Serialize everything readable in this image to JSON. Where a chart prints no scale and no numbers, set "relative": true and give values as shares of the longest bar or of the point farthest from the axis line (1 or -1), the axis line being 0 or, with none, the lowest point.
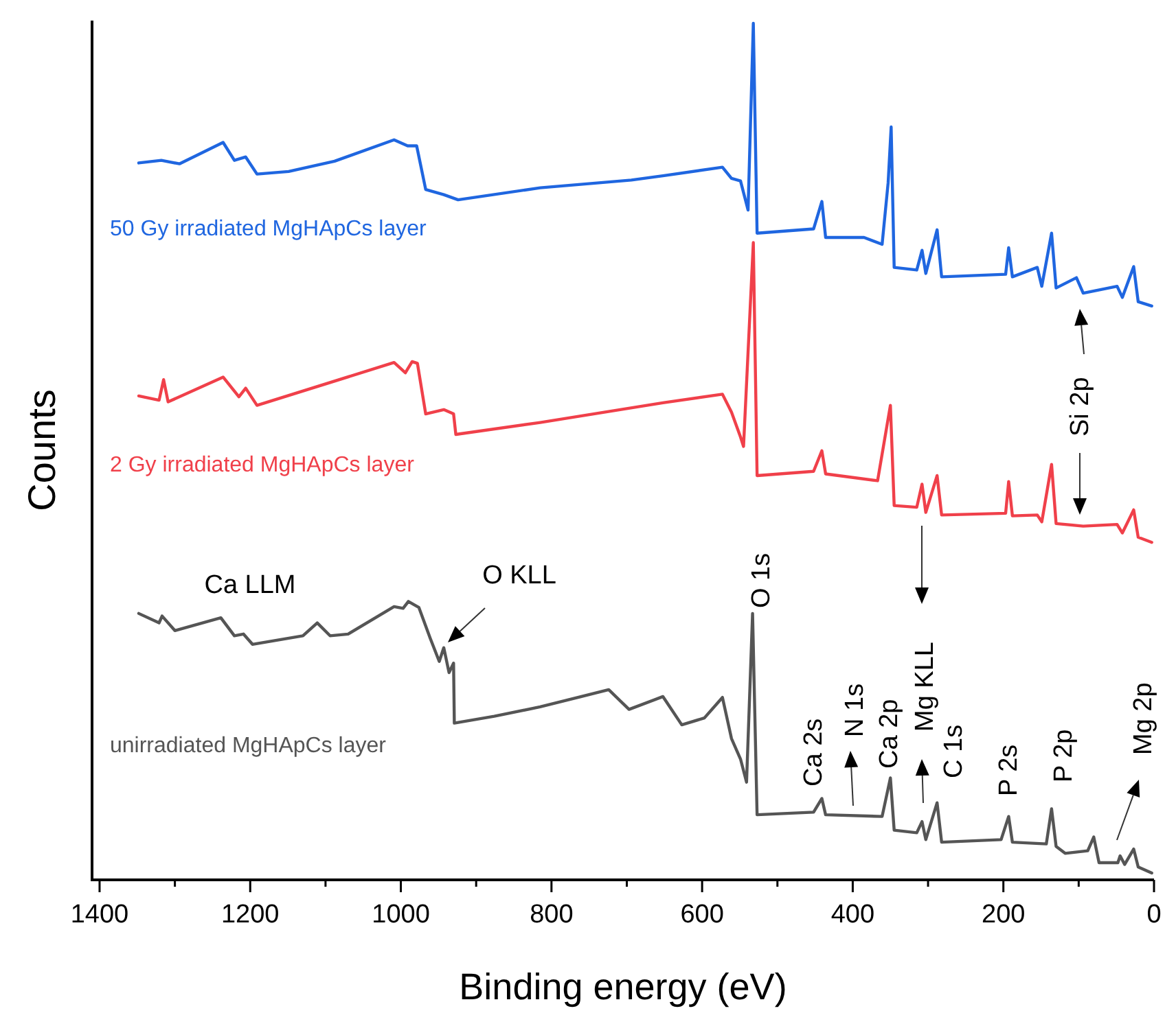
{
  "chart_data": {
    "type": "line",
    "xlabel": "Binding energy (eV)",
    "ylabel": "Counts",
    "relative": true,
    "legend": false,
    "tick_labels": "x",
    "grid": false,
    "xlim": [
      1410,
      0
    ],
    "xticks": [
      1400,
      {
        "value": 1300,
        "label": null
      },
      1200,
      {
        "value": 1100,
        "label": null
      },
      1000,
      {
        "value": 900,
        "label": null
      },
      800,
      {
        "value": 700,
        "label": null
      },
      600,
      {
        "value": 500,
        "label": null
      },
      400,
      {
        "value": 300,
        "label": null
      },
      200,
      {
        "value": 100,
        "label": null
      },
      0
    ],
    "series": [
      {
        "name": "50 Gy irradiated MgHApCs layer",
        "color": "#1f66e0",
        "x": [
          1348,
          1318,
          1294,
          1236,
          1221,
          1206,
          1191,
          1149,
          1088,
          1009,
          991,
          979,
          967,
          943,
          924,
          815,
          694,
          652,
          573,
          561,
          549,
          539,
          532,
          527,
          452,
          441,
          436,
          385,
          361,
          353,
          349,
          345,
          315,
          308,
          303,
          288,
          282,
          197,
          193,
          188,
          155,
          149,
          136,
          130,
          103,
          94,
          49,
          42,
          27,
          21,
          3
        ],
        "values": [
          0.837,
          0.84,
          0.836,
          0.861,
          0.84,
          0.844,
          0.824,
          0.827,
          0.839,
          0.864,
          0.857,
          0.857,
          0.806,
          0.8,
          0.794,
          0.808,
          0.817,
          0.822,
          0.832,
          0.819,
          0.816,
          0.782,
          1.0,
          0.755,
          0.76,
          0.792,
          0.75,
          0.75,
          0.742,
          0.814,
          0.879,
          0.715,
          0.712,
          0.735,
          0.708,
          0.759,
          0.704,
          0.707,
          0.738,
          0.704,
          0.715,
          0.693,
          0.755,
          0.691,
          0.703,
          0.685,
          0.693,
          0.68,
          0.716,
          0.675,
          0.67
        ]
      },
      {
        "name": "2 Gy irradiated MgHApCs layer",
        "color": "#f0404a",
        "x": [
          1348,
          1321,
          1315,
          1309,
          1236,
          1215,
          1206,
          1191,
          1009,
          994,
          985,
          978,
          967,
          943,
          930,
          927,
          815,
          652,
          573,
          561,
          549,
          545,
          532,
          527,
          452,
          441,
          436,
          367,
          350,
          345,
          315,
          308,
          303,
          288,
          282,
          197,
          193,
          188,
          155,
          149,
          136,
          130,
          94,
          49,
          42,
          27,
          21,
          3
        ],
        "values": [
          0.565,
          0.56,
          0.584,
          0.558,
          0.587,
          0.564,
          0.574,
          0.554,
          0.604,
          0.592,
          0.605,
          0.603,
          0.544,
          0.549,
          0.544,
          0.52,
          0.534,
          0.557,
          0.567,
          0.546,
          0.517,
          0.506,
          0.744,
          0.472,
          0.477,
          0.501,
          0.474,
          0.466,
          0.554,
          0.437,
          0.435,
          0.462,
          0.429,
          0.472,
          0.426,
          0.428,
          0.465,
          0.425,
          0.426,
          0.418,
          0.485,
          0.416,
          0.413,
          0.415,
          0.405,
          0.432,
          0.4,
          0.394
        ]
      },
      {
        "name": "unirradiated MgHApCs layer",
        "color": "#555555",
        "x": [
          1348,
          1321,
          1317,
          1300,
          1239,
          1221,
          1209,
          1197,
          1130,
          1111,
          1094,
          1070,
          1009,
          997,
          990,
          976,
          961,
          949,
          943,
          936,
          930,
          929,
          876,
          815,
          724,
          697,
          652,
          627,
          597,
          573,
          561,
          549,
          541,
          533,
          527,
          452,
          441,
          436,
          361,
          350,
          345,
          315,
          308,
          303,
          288,
          282,
          203,
          193,
          188,
          143,
          136,
          130,
          118,
          88,
          80,
          73,
          48,
          45,
          39,
          27,
          21,
          3
        ],
        "values": [
          0.311,
          0.3,
          0.308,
          0.291,
          0.306,
          0.285,
          0.287,
          0.275,
          0.285,
          0.3,
          0.285,
          0.287,
          0.319,
          0.317,
          0.325,
          0.318,
          0.282,
          0.255,
          0.271,
          0.242,
          0.253,
          0.183,
          0.191,
          0.202,
          0.222,
          0.199,
          0.214,
          0.181,
          0.189,
          0.213,
          0.165,
          0.141,
          0.114,
          0.311,
          0.076,
          0.079,
          0.095,
          0.076,
          0.074,
          0.119,
          0.058,
          0.055,
          0.068,
          0.047,
          0.09,
          0.044,
          0.047,
          0.074,
          0.044,
          0.042,
          0.083,
          0.039,
          0.031,
          0.034,
          0.05,
          0.02,
          0.02,
          0.028,
          0.018,
          0.036,
          0.015,
          0.008
        ]
      }
    ],
    "annotations": [
      "Ca LLM",
      "O KLL",
      "O 1s",
      "Ca 2s",
      "N 1s",
      "Ca 2p",
      "Mg KLL",
      "C 1s",
      "P 2s",
      "P 2p",
      "Mg 2p",
      "Si 2p"
    ]
  }
}
